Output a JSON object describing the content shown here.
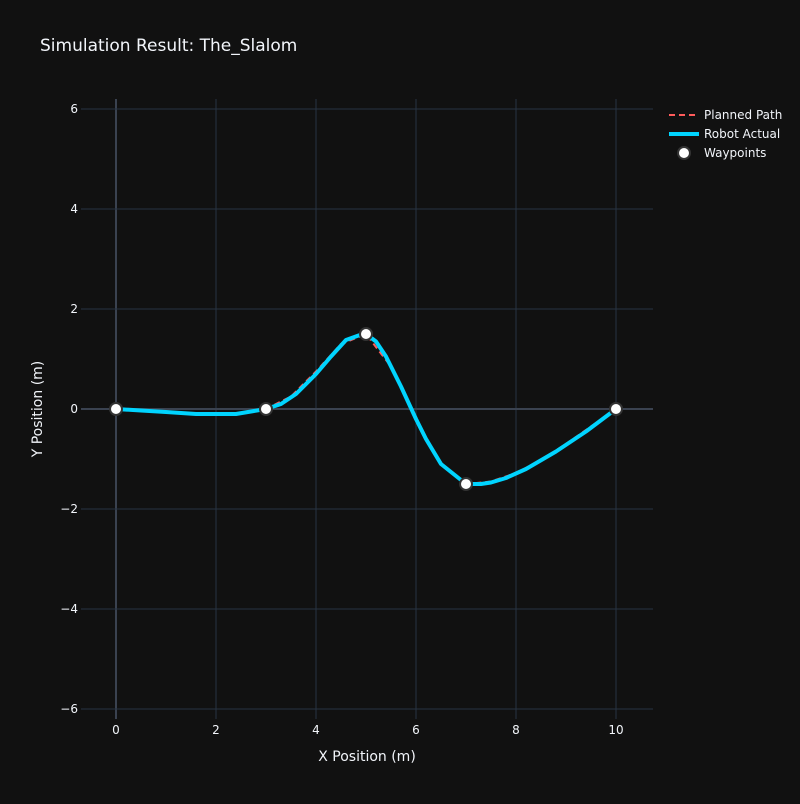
{
  "chart_data": {
    "type": "line",
    "title": "Simulation Result: The_Slalom",
    "xlabel": "X Position (m)",
    "ylabel": "Y Position (m)",
    "xlim": [
      -0.7,
      10.74
    ],
    "ylim": [
      -6.2,
      6.2
    ],
    "xticks": [
      0,
      2,
      4,
      6,
      8,
      10
    ],
    "yticks": [
      -6,
      -4,
      -2,
      0,
      2,
      4,
      6
    ],
    "ytick_labels": [
      "−6",
      "−4",
      "−2",
      "0",
      "2",
      "4",
      "6"
    ],
    "grid": true,
    "legend_placement": "top-right",
    "series": [
      {
        "name": "Planned Path",
        "style": "dashed",
        "color": "#ff5c5c",
        "x": [
          0,
          0.5,
          1,
          1.5,
          2,
          2.5,
          3,
          3.5,
          4,
          4.5,
          5,
          5.5,
          6,
          6.5,
          7,
          7.5,
          8,
          8.5,
          9,
          9.5,
          10
        ],
        "y": [
          0,
          -0.03,
          -0.07,
          -0.1,
          -0.1,
          -0.08,
          0,
          0.25,
          0.75,
          1.3,
          1.5,
          0.85,
          -0.2,
          -1.1,
          -1.5,
          -1.45,
          -1.28,
          -1.02,
          -0.7,
          -0.35,
          0
        ]
      },
      {
        "name": "Robot Actual",
        "style": "solid",
        "color": "#00d4ff",
        "x": [
          0,
          0.5,
          1,
          1.6,
          2,
          2.4,
          2.7,
          3,
          3.3,
          3.6,
          4,
          4.3,
          4.6,
          4.85,
          5,
          5.2,
          5.4,
          5.7,
          6,
          6.2,
          6.5,
          7,
          7.3,
          7.5,
          7.8,
          8.2,
          8.8,
          9.4,
          10
        ],
        "y": [
          0,
          -0.03,
          -0.06,
          -0.1,
          -0.1,
          -0.1,
          -0.05,
          0,
          0.1,
          0.3,
          0.7,
          1.05,
          1.38,
          1.47,
          1.5,
          1.35,
          1.05,
          0.45,
          -0.2,
          -0.6,
          -1.1,
          -1.5,
          -1.5,
          -1.47,
          -1.38,
          -1.2,
          -0.85,
          -0.45,
          0
        ]
      },
      {
        "name": "Waypoints",
        "style": "markers",
        "color": "#ffffff",
        "x": [
          0,
          3,
          5,
          7,
          10
        ],
        "y": [
          0,
          0,
          1.5,
          -1.5,
          0
        ]
      }
    ]
  }
}
